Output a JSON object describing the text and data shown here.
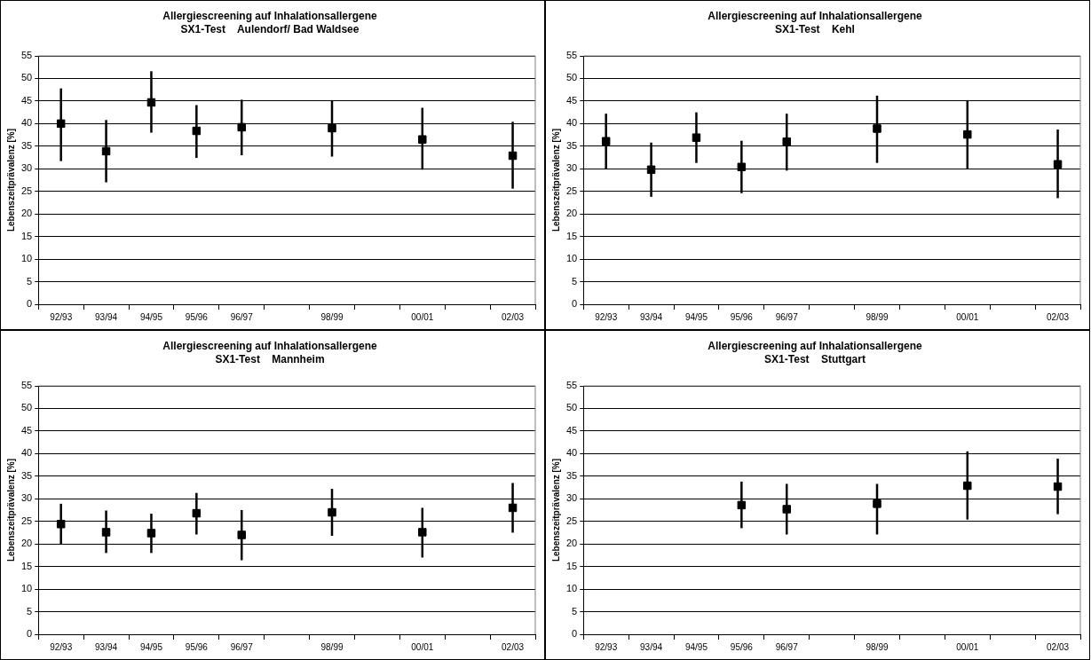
{
  "chart_data": [
    {
      "type": "scatter",
      "title": "Allergiescreening auf Inhalationsallergene",
      "subtitle": "SX1-Test    Aulendorf/ Bad Waldsee",
      "ylabel": "Lebenszeitprävalenz [%]",
      "categories": [
        "92/93",
        "93/94",
        "94/95",
        "95/96",
        "96/97",
        null,
        "98/99",
        null,
        "00/01",
        null,
        "02/03"
      ],
      "values": [
        40.0,
        33.9,
        44.7,
        38.4,
        39.2,
        null,
        39.0,
        null,
        36.5,
        null,
        32.9
      ],
      "errors": [
        [
          31.7,
          47.8
        ],
        [
          27.0,
          40.8
        ],
        [
          38.0,
          51.6
        ],
        [
          32.4,
          44.1
        ],
        [
          33.0,
          45.3
        ],
        null,
        [
          32.7,
          45.2
        ],
        null,
        [
          29.8,
          43.5
        ],
        null,
        [
          25.6,
          40.4
        ]
      ],
      "color": "#000000",
      "marker": "square",
      "ylim": [
        0,
        55
      ],
      "yticks": [
        0,
        5,
        10,
        15,
        20,
        25,
        30,
        35,
        40,
        45,
        50,
        55
      ],
      "grid": "y",
      "legend": false
    },
    {
      "type": "scatter",
      "title": "Allergiescreening auf Inhalationsallergene",
      "subtitle": "SX1-Test    Kehl",
      "ylabel": "Lebenszeitprävalenz [%]",
      "categories": [
        "92/93",
        "93/94",
        "94/95",
        "95/96",
        "96/97",
        null,
        "98/99",
        null,
        "00/01",
        null,
        "02/03"
      ],
      "values": [
        36.1,
        29.8,
        36.9,
        30.4,
        36.0,
        null,
        38.9,
        null,
        37.6,
        null,
        31.0
      ],
      "errors": [
        [
          30.0,
          42.2
        ],
        [
          23.8,
          35.8
        ],
        [
          31.3,
          42.5
        ],
        [
          24.6,
          36.2
        ],
        [
          29.6,
          42.2
        ],
        null,
        [
          31.3,
          46.2
        ],
        null,
        [
          30.0,
          45.2
        ],
        null,
        [
          23.5,
          38.7
        ]
      ],
      "color": "#000000",
      "marker": "square",
      "ylim": [
        0,
        55
      ],
      "yticks": [
        0,
        5,
        10,
        15,
        20,
        25,
        30,
        35,
        40,
        45,
        50,
        55
      ],
      "grid": "y",
      "legend": false
    },
    {
      "type": "scatter",
      "title": "Allergiescreening auf Inhalationsallergene",
      "subtitle": "SX1-Test    Mannheim",
      "ylabel": "Lebenszeitprävalenz [%]",
      "categories": [
        "92/93",
        "93/94",
        "94/95",
        "95/96",
        "96/97",
        null,
        "98/99",
        null,
        "00/01",
        null,
        "02/03"
      ],
      "values": [
        24.4,
        22.6,
        22.4,
        26.8,
        22.0,
        null,
        27.0,
        null,
        22.6,
        null,
        28.0
      ],
      "errors": [
        [
          19.9,
          28.9
        ],
        [
          18.0,
          27.4
        ],
        [
          18.0,
          26.7
        ],
        [
          22.1,
          31.3
        ],
        [
          16.4,
          27.5
        ],
        null,
        [
          21.8,
          32.2
        ],
        null,
        [
          17.0,
          28.0
        ],
        null,
        [
          22.5,
          33.5
        ]
      ],
      "color": "#000000",
      "marker": "square",
      "ylim": [
        0,
        55
      ],
      "yticks": [
        0,
        5,
        10,
        15,
        20,
        25,
        30,
        35,
        40,
        45,
        50,
        55
      ],
      "grid": "y",
      "legend": false
    },
    {
      "type": "scatter",
      "title": "Allergiescreening auf Inhalationsallergene",
      "subtitle": "SX1-Test    Stuttgart",
      "ylabel": "Lebenszeitprävalenz [%]",
      "categories": [
        "92/93",
        "93/94",
        "94/95",
        "95/96",
        "96/97",
        null,
        "98/99",
        null,
        "00/01",
        null,
        "02/03"
      ],
      "values": [
        null,
        null,
        null,
        28.6,
        27.7,
        null,
        28.9,
        null,
        32.9,
        null,
        32.7
      ],
      "errors": [
        null,
        null,
        null,
        [
          23.5,
          33.8
        ],
        [
          22.1,
          33.3
        ],
        null,
        [
          22.1,
          33.3
        ],
        null,
        [
          25.4,
          40.5
        ],
        null,
        [
          26.6,
          38.9
        ]
      ],
      "color": "#000000",
      "marker": "square",
      "ylim": [
        0,
        55
      ],
      "yticks": [
        0,
        5,
        10,
        15,
        20,
        25,
        30,
        35,
        40,
        45,
        50,
        55
      ],
      "grid": "y",
      "legend": false
    }
  ]
}
